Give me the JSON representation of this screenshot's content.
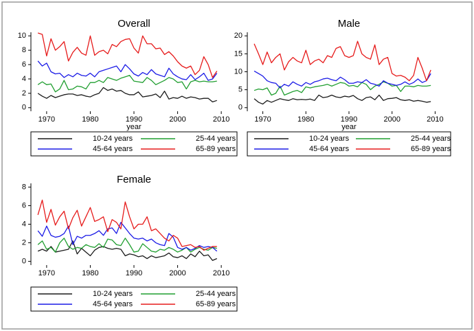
{
  "chart_data": [
    {
      "type": "line",
      "title": "Overall",
      "x_label": "year",
      "x": [
        1968,
        1969,
        1970,
        1971,
        1972,
        1973,
        1974,
        1975,
        1976,
        1977,
        1978,
        1979,
        1980,
        1981,
        1982,
        1983,
        1984,
        1985,
        1986,
        1987,
        1988,
        1989,
        1990,
        1991,
        1992,
        1993,
        1994,
        1995,
        1996,
        1997,
        1998,
        1999,
        2000,
        2001,
        2002,
        2003,
        2004,
        2005,
        2006,
        2007,
        2008,
        2009
      ],
      "xlim": [
        1966.4,
        2013.6
      ],
      "xticks": [
        1970,
        1980,
        1990,
        2000,
        2010
      ],
      "ylim": [
        -0.5,
        10.5
      ],
      "yticks": [
        0,
        2,
        4,
        6,
        8,
        10
      ],
      "series": [
        {
          "name": "10-24 years",
          "color": "#1a1a1a",
          "values": [
            2.0,
            1.6,
            1.3,
            1.7,
            1.4,
            1.6,
            1.8,
            1.9,
            1.9,
            1.7,
            1.8,
            1.6,
            1.5,
            1.8,
            2.0,
            2.8,
            2.4,
            2.6,
            2.3,
            2.4,
            2.0,
            1.8,
            1.8,
            2.2,
            1.5,
            1.6,
            1.7,
            1.9,
            1.4,
            2.3,
            1.2,
            1.4,
            1.3,
            1.6,
            1.3,
            1.5,
            1.4,
            1.2,
            1.3,
            1.3,
            0.8,
            1.0
          ]
        },
        {
          "name": "25-44 years",
          "color": "#1f9e2f",
          "values": [
            3.2,
            3.6,
            3.2,
            3.3,
            2.2,
            2.6,
            3.8,
            2.5,
            2.6,
            3.0,
            2.9,
            2.6,
            3.5,
            3.5,
            3.8,
            3.5,
            4.2,
            4.0,
            3.8,
            4.1,
            4.3,
            4.5,
            3.7,
            3.6,
            3.5,
            4.2,
            3.8,
            3.2,
            3.5,
            3.8,
            4.2,
            4.0,
            3.5,
            3.6,
            2.6,
            3.6,
            3.8,
            3.6,
            3.7,
            3.6,
            3.6,
            3.7
          ]
        },
        {
          "name": "45-64 years",
          "color": "#1a1ae6",
          "values": [
            6.5,
            5.8,
            6.2,
            5.0,
            4.7,
            4.8,
            4.2,
            4.6,
            4.3,
            4.8,
            4.5,
            4.4,
            4.8,
            4.3,
            5.0,
            5.2,
            5.4,
            5.6,
            5.8,
            5.0,
            6.0,
            5.4,
            4.7,
            4.4,
            4.9,
            4.6,
            5.3,
            4.7,
            4.5,
            4.3,
            5.5,
            4.7,
            4.3,
            4.0,
            3.9,
            4.6,
            3.9,
            4.3,
            4.8,
            3.8,
            4.0,
            4.8
          ]
        },
        {
          "name": "65-89 years",
          "color": "#e61a1a",
          "values": [
            10.4,
            10.2,
            7.2,
            9.6,
            8.0,
            8.5,
            9.2,
            6.5,
            7.7,
            8.4,
            7.6,
            7.3,
            10.0,
            7.3,
            7.8,
            8.0,
            7.5,
            8.8,
            8.5,
            9.2,
            9.5,
            9.6,
            8.3,
            7.6,
            10.0,
            8.9,
            8.9,
            8.2,
            8.3,
            7.4,
            7.8,
            7.2,
            6.4,
            5.8,
            5.5,
            5.8,
            4.6,
            5.2,
            7.1,
            6.0,
            4.2,
            5.1
          ]
        }
      ]
    },
    {
      "type": "line",
      "title": "Male",
      "x_label": "year",
      "x": [
        1968,
        1969,
        1970,
        1971,
        1972,
        1973,
        1974,
        1975,
        1976,
        1977,
        1978,
        1979,
        1980,
        1981,
        1982,
        1983,
        1984,
        1985,
        1986,
        1987,
        1988,
        1989,
        1990,
        1991,
        1992,
        1993,
        1994,
        1995,
        1996,
        1997,
        1998,
        1999,
        2000,
        2001,
        2002,
        2003,
        2004,
        2005,
        2006,
        2007,
        2008,
        2009
      ],
      "xlim": [
        1966.4,
        2013.6
      ],
      "xticks": [
        1970,
        1980,
        1990,
        2000,
        2010
      ],
      "ylim": [
        -1,
        21
      ],
      "yticks": [
        0,
        5,
        10,
        15,
        20
      ],
      "series": [
        {
          "name": "10-24 years",
          "color": "#1a1a1a",
          "values": [
            2.5,
            1.5,
            1.0,
            2.0,
            1.5,
            2.0,
            2.5,
            2.2,
            2.0,
            2.5,
            2.2,
            2.3,
            2.2,
            2.4,
            2.0,
            3.5,
            2.8,
            3.0,
            3.5,
            3.0,
            2.8,
            3.2,
            3.0,
            3.4,
            2.5,
            2.0,
            2.8,
            3.0,
            2.2,
            3.5,
            2.0,
            2.5,
            2.6,
            2.8,
            2.2,
            2.0,
            2.2,
            1.8,
            2.0,
            1.8,
            1.5,
            1.7
          ]
        },
        {
          "name": "25-44 years",
          "color": "#1f9e2f",
          "values": [
            4.8,
            5.2,
            5.0,
            5.5,
            3.5,
            4.0,
            6.0,
            3.5,
            4.0,
            4.5,
            4.8,
            4.2,
            5.8,
            5.5,
            5.8,
            6.0,
            6.2,
            6.5,
            6.0,
            6.5,
            7.0,
            6.8,
            6.0,
            6.2,
            5.8,
            7.0,
            6.5,
            5.0,
            6.0,
            6.5,
            7.2,
            6.8,
            6.0,
            6.2,
            4.5,
            6.0,
            6.0,
            5.8,
            6.2,
            6.0,
            6.0,
            6.2
          ]
        },
        {
          "name": "45-64 years",
          "color": "#1a1ae6",
          "values": [
            10.2,
            9.5,
            8.8,
            7.5,
            7.0,
            6.8,
            5.5,
            6.5,
            6.0,
            7.2,
            6.5,
            6.0,
            7.0,
            6.5,
            7.2,
            7.5,
            8.0,
            8.2,
            7.8,
            7.5,
            8.5,
            7.8,
            6.8,
            6.8,
            7.2,
            7.0,
            7.8,
            6.8,
            6.5,
            6.0,
            7.5,
            6.8,
            6.5,
            6.2,
            6.5,
            7.2,
            6.5,
            7.0,
            8.0,
            7.0,
            7.5,
            9.5
          ]
        },
        {
          "name": "65-89 years",
          "color": "#e61a1a",
          "values": [
            17.8,
            15.0,
            12.0,
            15.5,
            12.5,
            14.0,
            15.0,
            10.5,
            12.8,
            14.0,
            13.0,
            12.5,
            16.0,
            12.0,
            13.0,
            13.5,
            12.5,
            14.5,
            14.0,
            16.5,
            17.0,
            14.5,
            14.0,
            14.5,
            18.5,
            15.0,
            14.0,
            13.5,
            17.5,
            12.0,
            13.5,
            14.0,
            9.5,
            8.8,
            9.0,
            8.5,
            7.5,
            9.0,
            14.0,
            11.0,
            7.5,
            10.5
          ]
        }
      ]
    },
    {
      "type": "line",
      "title": "Female",
      "x": [
        1968,
        1969,
        1970,
        1971,
        1972,
        1973,
        1974,
        1975,
        1976,
        1977,
        1978,
        1979,
        1980,
        1981,
        1982,
        1983,
        1984,
        1985,
        1986,
        1987,
        1988,
        1989,
        1990,
        1991,
        1992,
        1993,
        1994,
        1995,
        1996,
        1997,
        1998,
        1999,
        2000,
        2001,
        2002,
        2003,
        2004,
        2005,
        2006,
        2007,
        2008,
        2009
      ],
      "xlim": [
        1966.4,
        2013.6
      ],
      "xticks": [
        1970,
        1980,
        1990,
        2000,
        2010
      ],
      "ylim": [
        -0.4,
        8.4
      ],
      "yticks": [
        0,
        2,
        4,
        6,
        8
      ],
      "series": [
        {
          "name": "10-24 years",
          "color": "#1a1a1a",
          "values": [
            1.1,
            1.3,
            1.1,
            1.6,
            1.0,
            1.1,
            1.2,
            1.3,
            2.2,
            0.8,
            1.4,
            1.0,
            0.6,
            1.2,
            1.5,
            1.6,
            1.4,
            1.3,
            1.4,
            1.3,
            0.6,
            0.8,
            0.7,
            0.5,
            0.6,
            0.3,
            0.6,
            0.4,
            0.5,
            0.6,
            0.9,
            0.5,
            0.4,
            0.6,
            0.3,
            0.8,
            0.5,
            1.1,
            0.6,
            0.7,
            0.1,
            0.3
          ]
        },
        {
          "name": "25-44 years",
          "color": "#1f9e2f",
          "values": [
            1.8,
            2.2,
            1.3,
            1.5,
            1.0,
            2.0,
            2.5,
            1.6,
            1.3,
            1.5,
            1.4,
            1.8,
            1.6,
            1.5,
            1.9,
            1.5,
            2.4,
            2.3,
            1.8,
            1.7,
            2.5,
            1.8,
            1.0,
            1.1,
            1.9,
            1.5,
            1.1,
            1.0,
            1.3,
            1.2,
            1.5,
            1.3,
            1.0,
            1.2,
            1.5,
            1.0,
            1.3,
            1.5,
            1.3,
            1.2,
            1.5,
            1.4
          ]
        },
        {
          "name": "45-64 years",
          "color": "#1a1ae6",
          "values": [
            3.3,
            2.7,
            3.8,
            2.8,
            2.6,
            2.7,
            3.0,
            3.8,
            1.8,
            2.7,
            2.5,
            2.8,
            2.8,
            3.0,
            3.3,
            2.8,
            3.5,
            3.6,
            3.0,
            4.2,
            3.6,
            3.0,
            2.5,
            2.4,
            2.5,
            2.2,
            2.4,
            2.0,
            1.8,
            1.7,
            3.0,
            2.6,
            1.5,
            1.3,
            1.5,
            1.2,
            1.4,
            1.7,
            1.5,
            1.6,
            1.5,
            1.1
          ]
        },
        {
          "name": "65-89 years",
          "color": "#e61a1a",
          "values": [
            5.0,
            6.6,
            4.2,
            5.6,
            3.9,
            4.8,
            5.4,
            3.5,
            4.7,
            5.5,
            3.8,
            4.8,
            5.8,
            4.3,
            4.5,
            4.8,
            3.2,
            4.5,
            4.2,
            3.5,
            6.4,
            4.8,
            3.5,
            4.0,
            4.0,
            4.8,
            3.3,
            3.5,
            3.0,
            2.5,
            2.2,
            2.8,
            2.5,
            1.6,
            1.7,
            1.8,
            1.5,
            1.6,
            1.2,
            1.4,
            1.6,
            1.6
          ]
        }
      ]
    }
  ]
}
